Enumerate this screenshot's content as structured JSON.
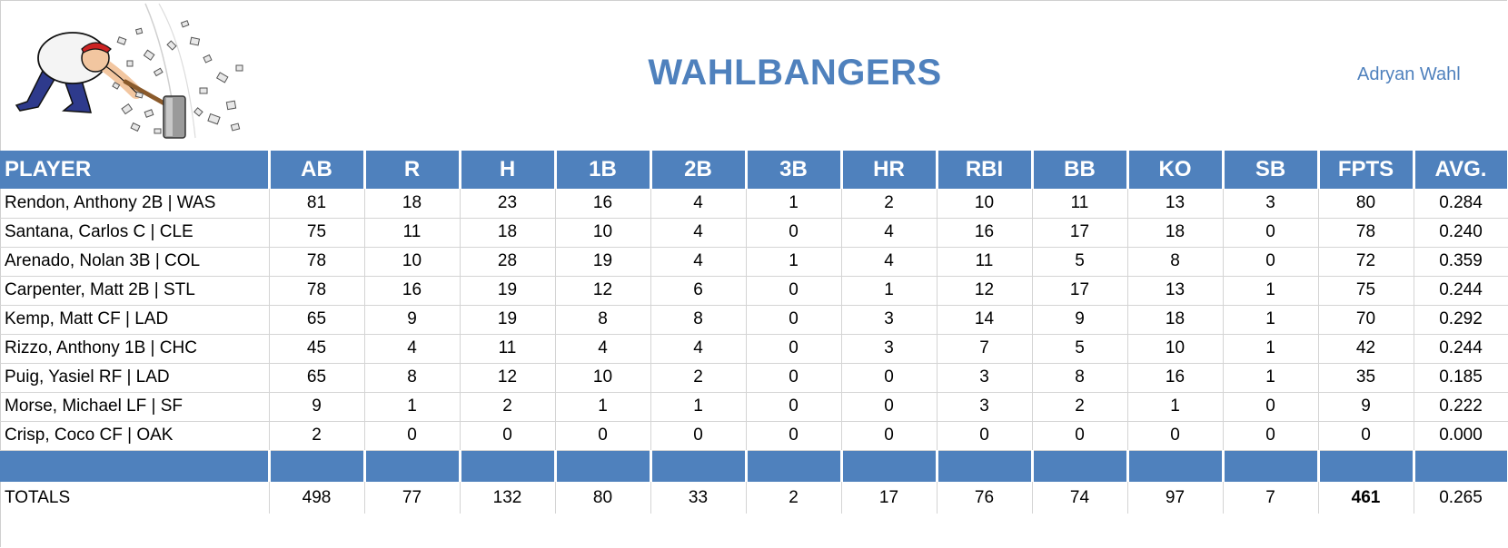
{
  "header": {
    "team_name": "WAHLBANGERS",
    "owner": "Adryan Wahl",
    "logo_icon": "hammer-smashing-man-logo-icon"
  },
  "table": {
    "columns": [
      "PLAYER",
      "AB",
      "R",
      "H",
      "1B",
      "2B",
      "3B",
      "HR",
      "RBI",
      "BB",
      "KO",
      "SB",
      "FPTS",
      "AVG."
    ],
    "rows": [
      [
        "Rendon, Anthony 2B | WAS",
        "81",
        "18",
        "23",
        "16",
        "4",
        "1",
        "2",
        "10",
        "11",
        "13",
        "3",
        "80",
        "0.284"
      ],
      [
        "Santana, Carlos C | CLE",
        "75",
        "11",
        "18",
        "10",
        "4",
        "0",
        "4",
        "16",
        "17",
        "18",
        "0",
        "78",
        "0.240"
      ],
      [
        "Arenado, Nolan 3B | COL",
        "78",
        "10",
        "28",
        "19",
        "4",
        "1",
        "4",
        "11",
        "5",
        "8",
        "0",
        "72",
        "0.359"
      ],
      [
        "Carpenter, Matt 2B | STL",
        "78",
        "16",
        "19",
        "12",
        "6",
        "0",
        "1",
        "12",
        "17",
        "13",
        "1",
        "75",
        "0.244"
      ],
      [
        "Kemp, Matt CF | LAD",
        "65",
        "9",
        "19",
        "8",
        "8",
        "0",
        "3",
        "14",
        "9",
        "18",
        "1",
        "70",
        "0.292"
      ],
      [
        "Rizzo, Anthony 1B | CHC",
        "45",
        "4",
        "11",
        "4",
        "4",
        "0",
        "3",
        "7",
        "5",
        "10",
        "1",
        "42",
        "0.244"
      ],
      [
        "Puig, Yasiel RF | LAD",
        "65",
        "8",
        "12",
        "10",
        "2",
        "0",
        "0",
        "3",
        "8",
        "16",
        "1",
        "35",
        "0.185"
      ],
      [
        "Morse, Michael LF | SF",
        "9",
        "1",
        "2",
        "1",
        "1",
        "0",
        "0",
        "3",
        "2",
        "1",
        "0",
        "9",
        "0.222"
      ],
      [
        "Crisp, Coco CF | OAK",
        "2",
        "0",
        "0",
        "0",
        "0",
        "0",
        "0",
        "0",
        "0",
        "0",
        "0",
        "0",
        "0.000"
      ]
    ],
    "totals": [
      "TOTALS",
      "498",
      "77",
      "132",
      "80",
      "33",
      "2",
      "17",
      "76",
      "74",
      "97",
      "7",
      "461",
      "0.265"
    ]
  },
  "colors": {
    "accent": "#4f81bd",
    "grid": "#d4d4d4"
  }
}
